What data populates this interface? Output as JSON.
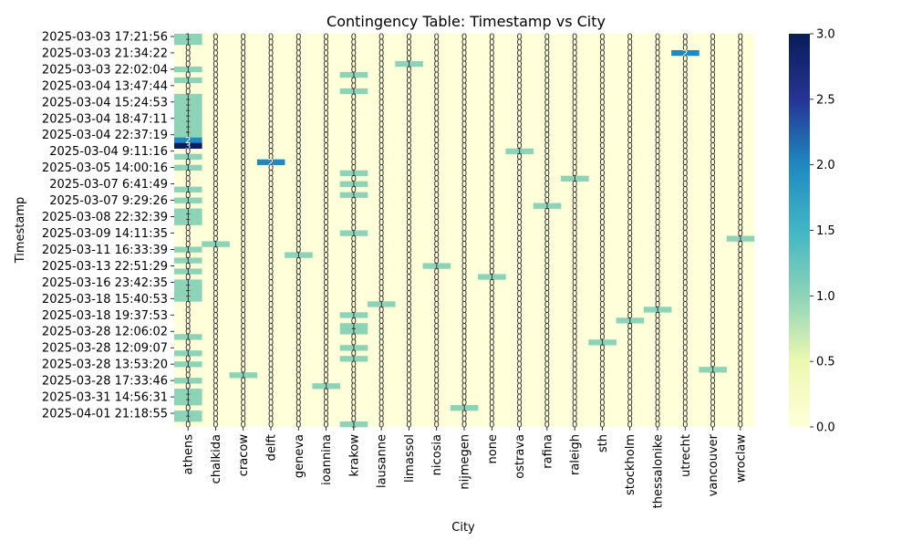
{
  "chart_data": {
    "type": "heatmap",
    "title": "Contingency Table: Timestamp vs City",
    "xlabel": "City",
    "ylabel": "Timestamp",
    "colormap": "YlGnBu",
    "vmin": 0,
    "vmax": 3,
    "colorbar_ticks": [
      "0.0",
      "0.5",
      "1.0",
      "1.5",
      "2.0",
      "2.5",
      "3.0"
    ],
    "colors": {
      "zero": "#ffffd9",
      "one": "#8dd3b8",
      "two": "#1f88c0",
      "three": "#0b1f5c",
      "cell_text": "#333333"
    },
    "cities": [
      "athens",
      "chalkida",
      "cracow",
      "delft",
      "geneva",
      "ioannina",
      "krakow",
      "lausanne",
      "limassol",
      "nicosia",
      "nijmegen",
      "none",
      "ostrava",
      "rafina",
      "raleigh",
      "sth",
      "stockholm",
      "thessalonike",
      "utrecht",
      "vancouver",
      "wroclaw"
    ],
    "timestamp_labels": [
      "2025-03-03 17:21:56",
      "2025-03-03 21:34:22",
      "2025-03-03 22:02:04",
      "2025-03-04 13:47:44",
      "2025-03-04 15:24:53",
      "2025-03-04 18:47:11",
      "2025-03-04 22:37:19",
      "2025-03-04 9:11:16",
      "2025-03-05 14:00:16",
      "2025-03-07 6:41:49",
      "2025-03-07 9:29:26",
      "2025-03-08 22:32:39",
      "2025-03-09 14:11:35",
      "2025-03-11 16:33:39",
      "2025-03-13 22:51:29",
      "2025-03-16 23:42:35",
      "2025-03-18 15:40:53",
      "2025-03-18 19:37:53",
      "2025-03-28 12:06:02",
      "2025-03-28 12:09:07",
      "2025-03-28 13:53:20",
      "2025-03-28 17:33:46",
      "2025-03-31 14:56:31",
      "2025-04-01 21:18:55"
    ],
    "row_count": 72,
    "label_every": 3,
    "nonzero_cells": [
      {
        "row": 0,
        "col": 0,
        "value": 1
      },
      {
        "row": 1,
        "col": 0,
        "value": 1
      },
      {
        "row": 3,
        "col": 18,
        "value": 2
      },
      {
        "row": 5,
        "col": 8,
        "value": 1
      },
      {
        "row": 6,
        "col": 0,
        "value": 1
      },
      {
        "row": 7,
        "col": 6,
        "value": 1
      },
      {
        "row": 8,
        "col": 0,
        "value": 1
      },
      {
        "row": 10,
        "col": 6,
        "value": 1
      },
      {
        "row": 11,
        "col": 0,
        "value": 1
      },
      {
        "row": 12,
        "col": 0,
        "value": 1
      },
      {
        "row": 13,
        "col": 0,
        "value": 1
      },
      {
        "row": 14,
        "col": 0,
        "value": 1
      },
      {
        "row": 15,
        "col": 0,
        "value": 1
      },
      {
        "row": 16,
        "col": 0,
        "value": 1
      },
      {
        "row": 17,
        "col": 0,
        "value": 1
      },
      {
        "row": 18,
        "col": 0,
        "value": 1
      },
      {
        "row": 19,
        "col": 0,
        "value": 2
      },
      {
        "row": 20,
        "col": 0,
        "value": 3
      },
      {
        "row": 21,
        "col": 12,
        "value": 1
      },
      {
        "row": 22,
        "col": 0,
        "value": 1
      },
      {
        "row": 23,
        "col": 3,
        "value": 2
      },
      {
        "row": 24,
        "col": 0,
        "value": 1
      },
      {
        "row": 25,
        "col": 6,
        "value": 1
      },
      {
        "row": 26,
        "col": 14,
        "value": 1
      },
      {
        "row": 27,
        "col": 6,
        "value": 1
      },
      {
        "row": 28,
        "col": 0,
        "value": 1
      },
      {
        "row": 29,
        "col": 6,
        "value": 1
      },
      {
        "row": 30,
        "col": 0,
        "value": 1
      },
      {
        "row": 31,
        "col": 13,
        "value": 1
      },
      {
        "row": 32,
        "col": 0,
        "value": 1
      },
      {
        "row": 33,
        "col": 0,
        "value": 1
      },
      {
        "row": 34,
        "col": 0,
        "value": 1
      },
      {
        "row": 36,
        "col": 6,
        "value": 1
      },
      {
        "row": 37,
        "col": 20,
        "value": 1
      },
      {
        "row": 38,
        "col": 1,
        "value": 1
      },
      {
        "row": 39,
        "col": 0,
        "value": 1
      },
      {
        "row": 40,
        "col": 4,
        "value": 1
      },
      {
        "row": 41,
        "col": 0,
        "value": 1
      },
      {
        "row": 42,
        "col": 9,
        "value": 1
      },
      {
        "row": 43,
        "col": 0,
        "value": 1
      },
      {
        "row": 44,
        "col": 11,
        "value": 1
      },
      {
        "row": 45,
        "col": 0,
        "value": 1
      },
      {
        "row": 46,
        "col": 0,
        "value": 1
      },
      {
        "row": 47,
        "col": 0,
        "value": 1
      },
      {
        "row": 48,
        "col": 0,
        "value": 1
      },
      {
        "row": 49,
        "col": 7,
        "value": 1
      },
      {
        "row": 50,
        "col": 17,
        "value": 1
      },
      {
        "row": 51,
        "col": 6,
        "value": 1
      },
      {
        "row": 52,
        "col": 16,
        "value": 1
      },
      {
        "row": 53,
        "col": 6,
        "value": 1
      },
      {
        "row": 54,
        "col": 6,
        "value": 1
      },
      {
        "row": 55,
        "col": 0,
        "value": 1
      },
      {
        "row": 56,
        "col": 15,
        "value": 1
      },
      {
        "row": 57,
        "col": 6,
        "value": 1
      },
      {
        "row": 58,
        "col": 0,
        "value": 1
      },
      {
        "row": 59,
        "col": 6,
        "value": 1
      },
      {
        "row": 60,
        "col": 0,
        "value": 1
      },
      {
        "row": 61,
        "col": 19,
        "value": 1
      },
      {
        "row": 62,
        "col": 2,
        "value": 1
      },
      {
        "row": 63,
        "col": 0,
        "value": 1
      },
      {
        "row": 64,
        "col": 5,
        "value": 1
      },
      {
        "row": 65,
        "col": 0,
        "value": 1
      },
      {
        "row": 66,
        "col": 0,
        "value": 1
      },
      {
        "row": 67,
        "col": 0,
        "value": 1
      },
      {
        "row": 68,
        "col": 10,
        "value": 1
      },
      {
        "row": 69,
        "col": 0,
        "value": 1
      },
      {
        "row": 70,
        "col": 0,
        "value": 1
      },
      {
        "row": 71,
        "col": 6,
        "value": 1
      }
    ]
  }
}
